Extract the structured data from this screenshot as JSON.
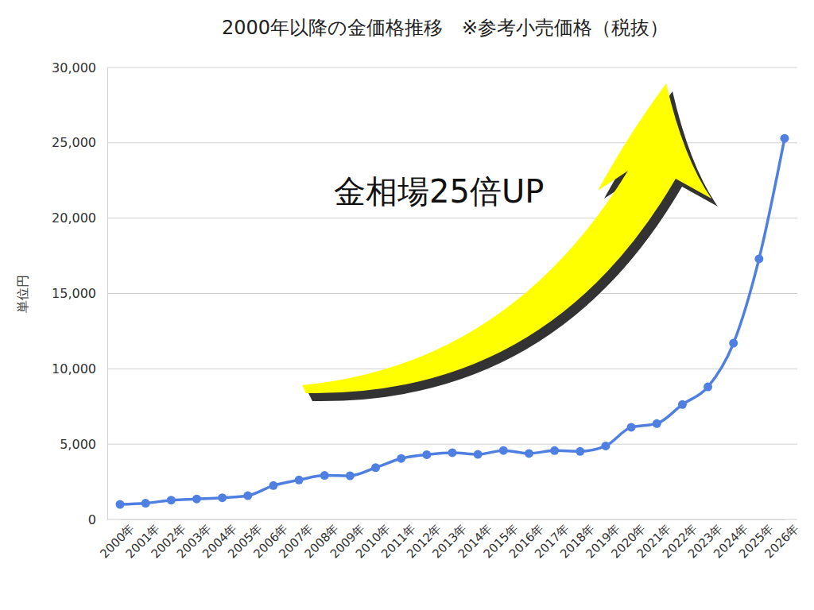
{
  "chart_data": {
    "type": "line",
    "title": "2000年以降の金価格推移　※参考小売価格（税抜）",
    "y_label": "単位円",
    "annotation": "金相場25倍UP",
    "categories": [
      "2000年",
      "2001年",
      "2002年",
      "2003年",
      "2004年",
      "2005年",
      "2006年",
      "2007年",
      "2008年",
      "2009年",
      "2010年",
      "2011年",
      "2012年",
      "2013年",
      "2014年",
      "2015年",
      "2016年",
      "2017年",
      "2018年",
      "2019年",
      "2020年",
      "2021年",
      "2022年",
      "2023年",
      "2024年",
      "2025年",
      "2026年"
    ],
    "values": [
      1000,
      1080,
      1280,
      1360,
      1440,
      1580,
      2250,
      2620,
      2920,
      2900,
      3440,
      4050,
      4300,
      4430,
      4320,
      4580,
      4380,
      4570,
      4520,
      4880,
      6120,
      6360,
      7630,
      8800,
      11700,
      17300,
      25300
    ],
    "color": "#4f80e1",
    "marker": "circle",
    "ylim": [
      0,
      30000
    ],
    "yticks": [
      0,
      {
        "value": 5000,
        "label": "5,000"
      },
      {
        "value": 10000,
        "label": "10,000"
      },
      {
        "value": 15000,
        "label": "15,000"
      },
      {
        "value": 20000,
        "label": "20,000"
      },
      {
        "value": 25000,
        "label": "25,000"
      },
      {
        "value": 30000,
        "label": "30,000"
      }
    ],
    "grid": true
  }
}
